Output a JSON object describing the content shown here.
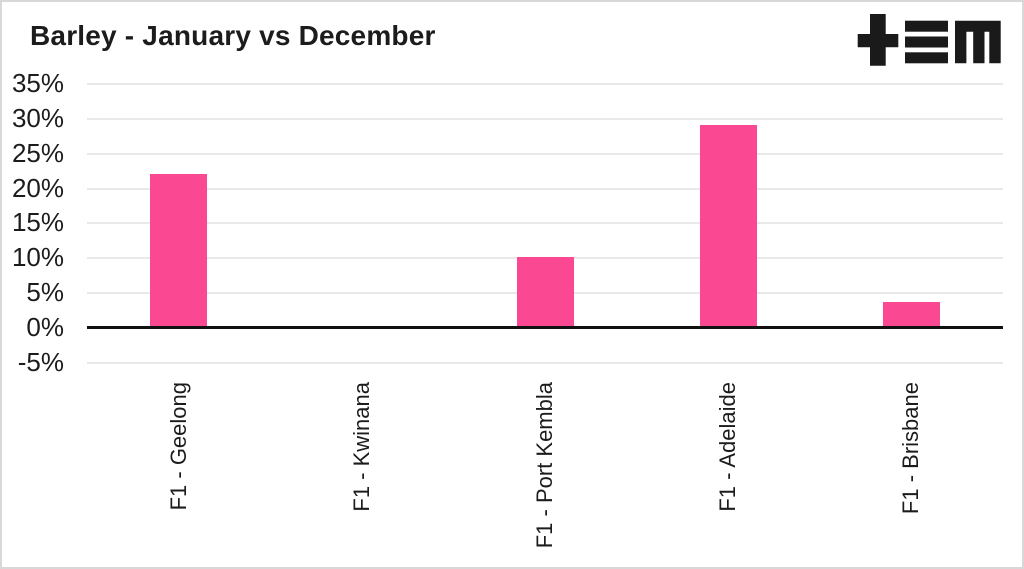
{
  "header": {
    "title": "Barley - January vs December",
    "logo": "tem-logo"
  },
  "chart_data": {
    "type": "bar",
    "title": "Barley - January vs December",
    "categories": [
      "F1 - Geelong",
      "F1 - Kwinana",
      "F1 - Port Kembla",
      "F1 - Adelaide",
      "F1 - Brisbane"
    ],
    "values": [
      22,
      0,
      10,
      29,
      3.6
    ],
    "xlabel": "",
    "ylabel": "",
    "y_ticks": [
      35,
      30,
      25,
      20,
      15,
      10,
      5,
      0,
      -5
    ],
    "tick_suffix": "%",
    "ylim": [
      -5,
      35
    ],
    "grid": true,
    "legend": "none",
    "x_label_rotation": -90,
    "bar_color": "#fb4893",
    "colors": {
      "grid": "#e9e9e9",
      "zero_line": "#111111",
      "text": "#1c1c1c",
      "background": "#ffffff",
      "border": "#d8d8d8",
      "logo": "#1a1a1a"
    }
  }
}
